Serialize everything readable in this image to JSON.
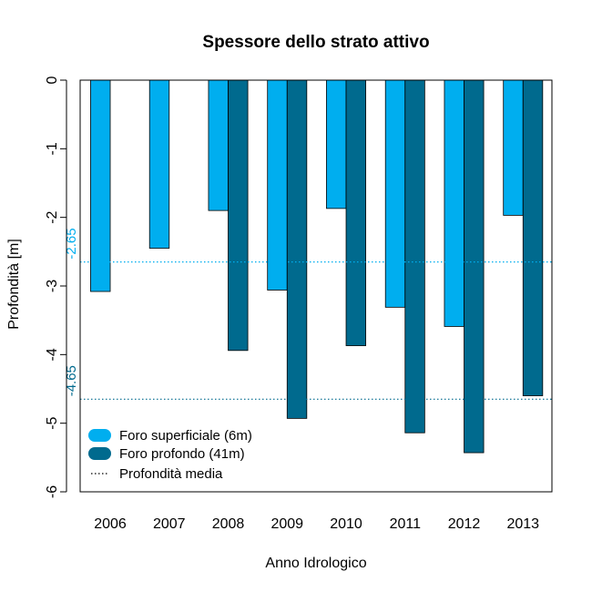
{
  "chart_data": {
    "type": "bar",
    "title": "Spessore dello strato attivo",
    "xlabel": "Anno Idrologico",
    "ylabel": "Profondità [m]",
    "categories": [
      "2006",
      "2007",
      "2008",
      "2009",
      "2010",
      "2011",
      "2012",
      "2013"
    ],
    "ylim": [
      -6,
      0
    ],
    "yticks": [
      0,
      -1,
      -2,
      -3,
      -4,
      -5,
      -6
    ],
    "ytick_labels": [
      "0",
      "-1",
      "-2",
      "-3",
      "-4",
      "-5",
      "-6"
    ],
    "series": [
      {
        "name": "Foro superficiale (6m)",
        "color": "#00AEEF",
        "values": [
          -3.08,
          -2.45,
          -1.9,
          -3.06,
          -1.87,
          -3.31,
          -3.59,
          -1.97
        ]
      },
      {
        "name": "Foro profondo (41m)",
        "color": "#006A8E",
        "values": [
          null,
          null,
          -3.94,
          -4.93,
          -3.87,
          -5.14,
          -5.43,
          -4.6
        ]
      }
    ],
    "reference_lines": [
      {
        "value": -2.65,
        "label": "-2.65",
        "color": "#00AEEF",
        "style": "dotted"
      },
      {
        "value": -4.65,
        "label": "-4.65",
        "color": "#006A8E",
        "style": "dotted"
      }
    ],
    "legend": {
      "position": "bottom-left",
      "entries": [
        {
          "label": "Foro superficiale (6m)",
          "marker": "box",
          "color": "#00AEEF"
        },
        {
          "label": "Foro profondo (41m)",
          "marker": "box",
          "color": "#006A8E"
        },
        {
          "label": "Profondità media",
          "marker": "dotted-line",
          "color": "#000000"
        }
      ]
    }
  }
}
